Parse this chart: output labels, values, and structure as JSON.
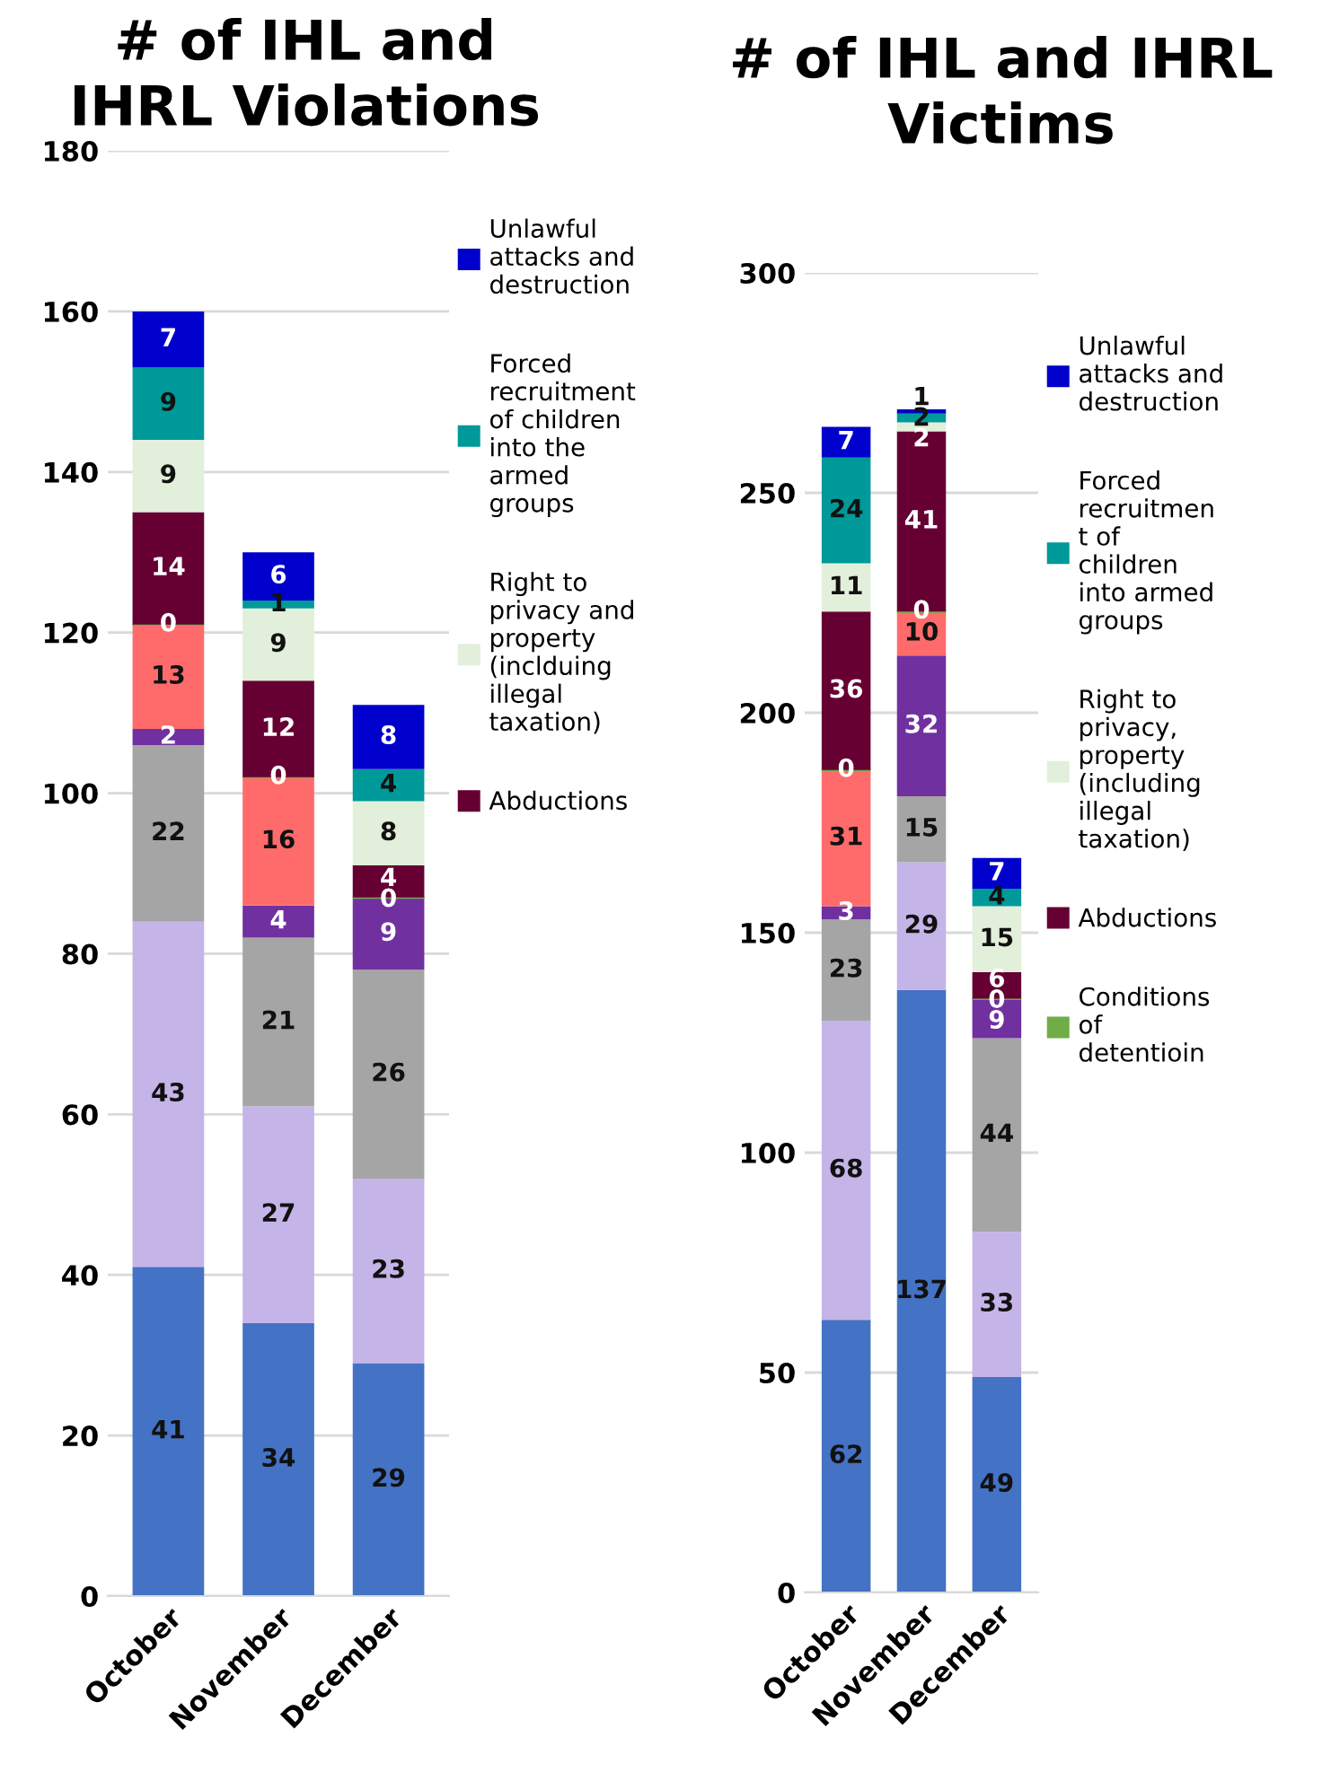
{
  "chart_data": [
    {
      "type": "bar",
      "stacked": true,
      "title": "# of IHL and\nIHRL Violations",
      "categories": [
        "October",
        "November",
        "December"
      ],
      "ylim": [
        0,
        180
      ],
      "yticks": [
        0,
        20,
        40,
        60,
        80,
        100,
        120,
        140,
        160,
        180
      ],
      "grid": "y",
      "legend": "right",
      "data_labels": true,
      "series": [
        {
          "color": "#4472c4",
          "values": [
            41,
            34,
            29
          ]
        },
        {
          "color": "#c5b4e8",
          "values": [
            43,
            27,
            23
          ]
        },
        {
          "color": "#a5a5a5",
          "values": [
            22,
            21,
            26
          ]
        },
        {
          "color": "#7030a0",
          "values": [
            2,
            4,
            9
          ]
        },
        {
          "color": "#ff6b6b",
          "values": [
            13,
            16,
            null
          ]
        },
        {
          "color": "#70ad47",
          "values": [
            0,
            0,
            0
          ]
        },
        {
          "name": "Abductions",
          "color": "#660033",
          "values": [
            14,
            12,
            4
          ]
        },
        {
          "name": "Right to\nprivacy and\nproperty\n(inclduing\nillegal\ntaxation)",
          "color": "#e2efda",
          "values": [
            9,
            9,
            8
          ]
        },
        {
          "name": "Forced\nrecruitment\nof children\ninto the\narmed\ngroups",
          "color": "#009999",
          "values": [
            9,
            1,
            4
          ]
        },
        {
          "name": "Unlawful\nattacks and\ndestruction",
          "color": "#0000cc",
          "values": [
            7,
            6,
            8
          ]
        }
      ]
    },
    {
      "type": "bar",
      "stacked": true,
      "title": "# of IHL and IHRL\nVictims",
      "categories": [
        "October",
        "November",
        "December"
      ],
      "ylim": [
        0,
        300
      ],
      "yticks": [
        0,
        50,
        100,
        150,
        200,
        250,
        300
      ],
      "grid": "y",
      "legend": "right",
      "data_labels": true,
      "series": [
        {
          "color": "#4472c4",
          "values": [
            62,
            137,
            49
          ]
        },
        {
          "color": "#c5b4e8",
          "values": [
            68,
            29,
            33
          ]
        },
        {
          "color": "#a5a5a5",
          "values": [
            23,
            15,
            44
          ]
        },
        {
          "color": "#7030a0",
          "values": [
            3,
            32,
            9
          ]
        },
        {
          "color": "#ff6b6b",
          "values": [
            31,
            10,
            null
          ]
        },
        {
          "name": "Conditions\nof\ndetentioin",
          "color": "#70ad47",
          "values": [
            0,
            0,
            0
          ]
        },
        {
          "name": "Abductions",
          "color": "#660033",
          "values": [
            36,
            41,
            6
          ]
        },
        {
          "name": "Right to\nprivacy,\nproperty\n(including\nillegal\ntaxation)",
          "color": "#e2efda",
          "values": [
            11,
            2,
            15
          ]
        },
        {
          "name": "Forced\nrecruitmen\nt of\nchildren\ninto armed\ngroups",
          "color": "#009999",
          "values": [
            24,
            2,
            4
          ]
        },
        {
          "name": "Unlawful\nattacks and\ndestruction",
          "color": "#0000cc",
          "values": [
            7,
            1,
            7
          ]
        }
      ]
    }
  ]
}
